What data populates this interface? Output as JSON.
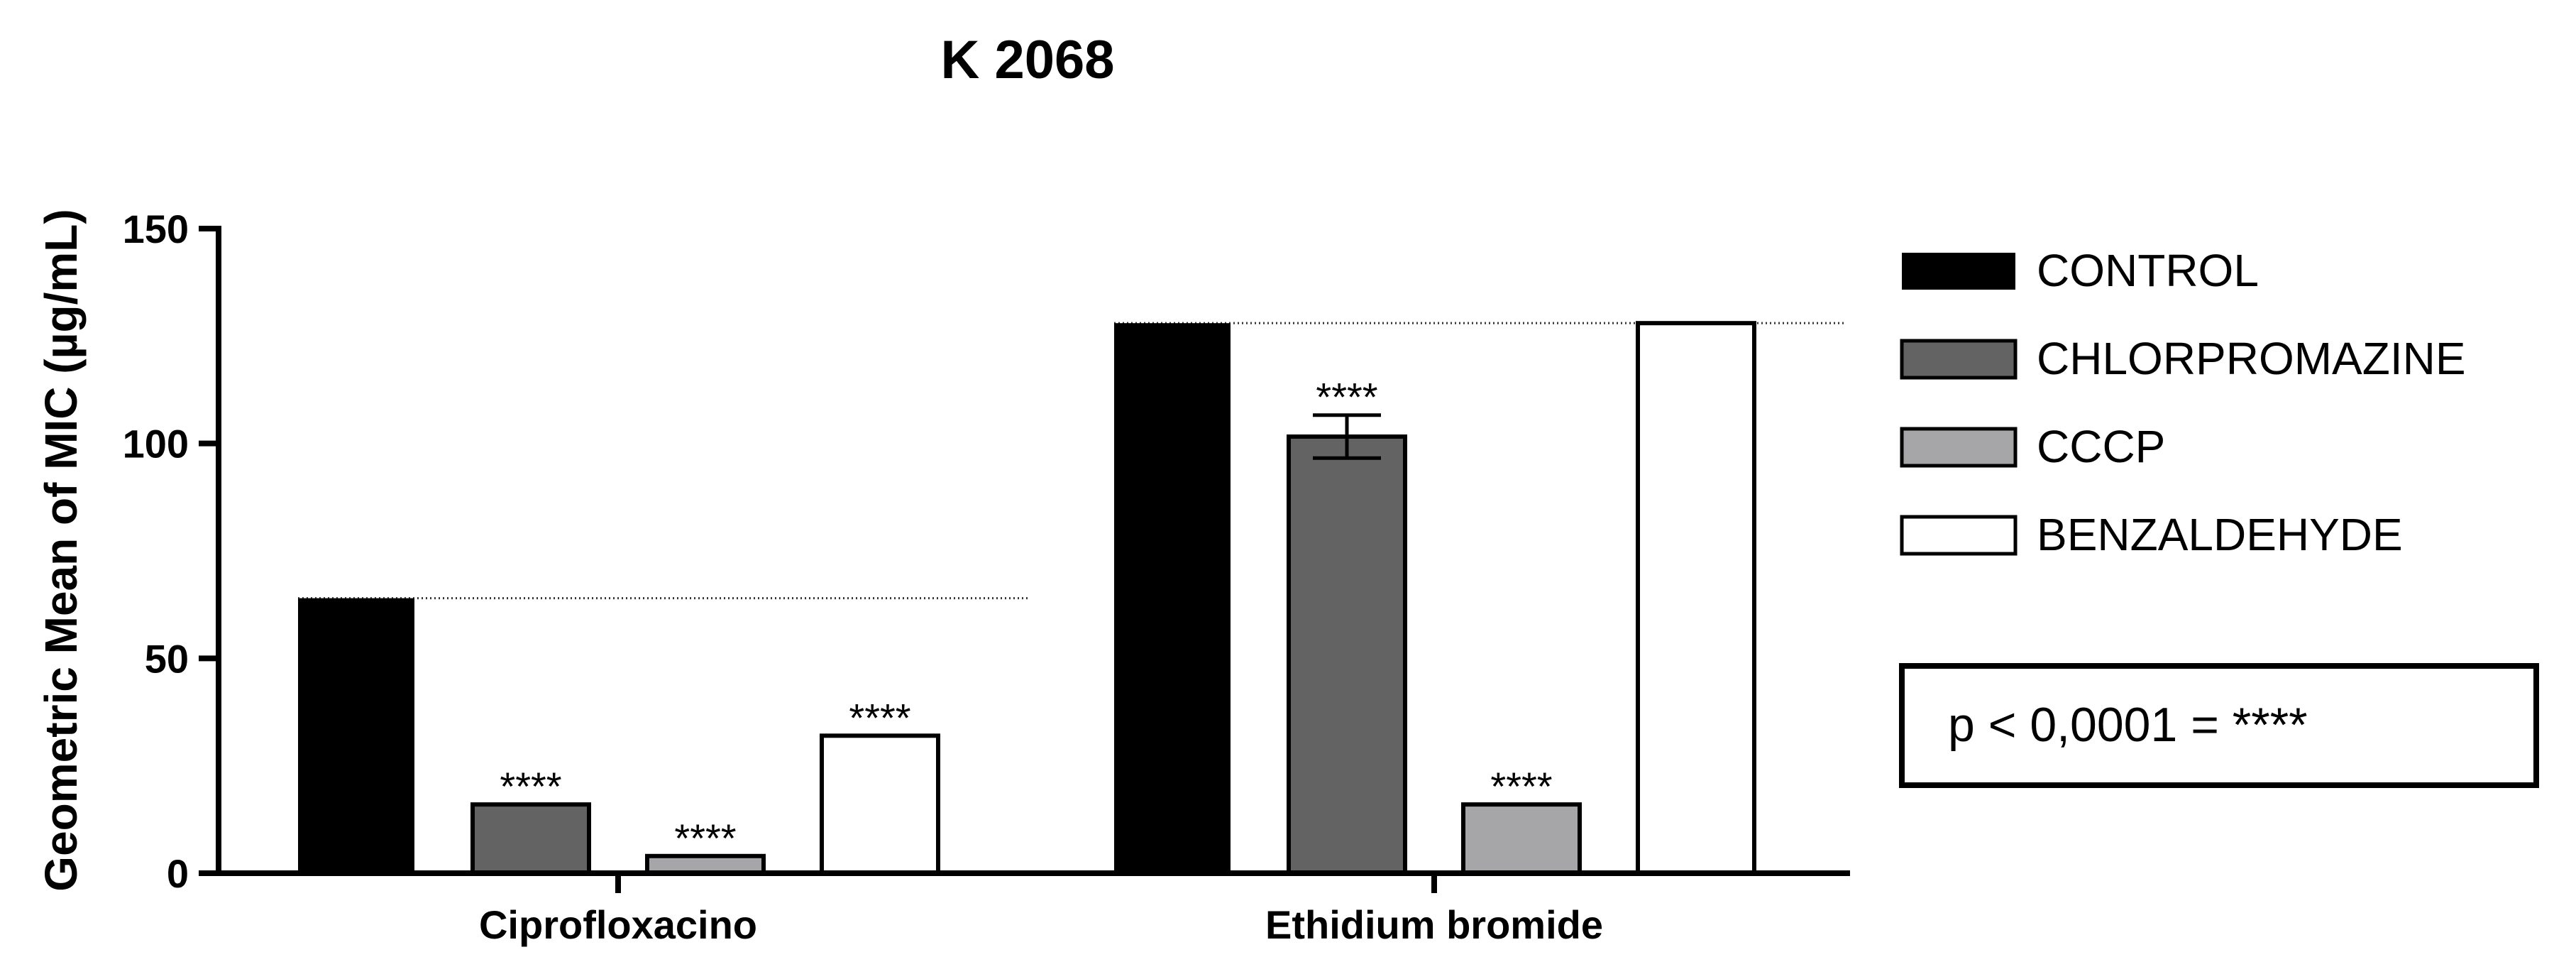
{
  "chart_data": {
    "type": "bar",
    "title": "K 2068",
    "ylabel": "Geometric Mean of MIC (µg/mL)",
    "xlabel": "",
    "ylim": [
      0,
      150
    ],
    "yticks": [
      "0",
      "50",
      "100",
      "150"
    ],
    "categories": [
      "Ciprofloxacino",
      "Ethidium bromide"
    ],
    "series": [
      {
        "name": "CONTROL",
        "color": "#000000",
        "values": [
          64,
          128
        ],
        "errors": [
          0,
          0
        ],
        "sig": [
          "",
          ""
        ]
      },
      {
        "name": "CHLORPROMAZINE",
        "color": "#636363",
        "values": [
          16,
          101.6
        ],
        "errors": [
          0,
          5
        ],
        "sig": [
          "****",
          "****"
        ]
      },
      {
        "name": "CCCP",
        "color": "#a6a6a8",
        "values": [
          4,
          16
        ],
        "errors": [
          0,
          0
        ],
        "sig": [
          "****",
          "****"
        ]
      },
      {
        "name": "BENZALDEHYDE",
        "color": "#ffffff",
        "values": [
          32,
          128
        ],
        "errors": [
          0,
          0
        ],
        "sig": [
          "****",
          ""
        ]
      }
    ],
    "reference_lines": [
      64,
      128
    ],
    "legend_position": "right",
    "note": "p < 0,0001 = ****"
  }
}
